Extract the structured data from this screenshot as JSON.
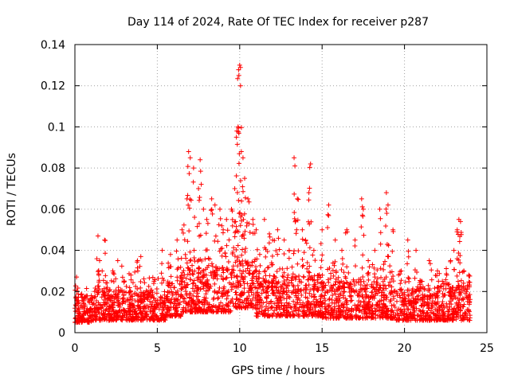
{
  "chart_data": {
    "type": "scatter",
    "title": "Day 114 of 2024, Rate Of TEC Index for receiver p287",
    "xlabel": "GPS time / hours",
    "ylabel": "ROTI / TECUs",
    "xlim": [
      0,
      25
    ],
    "ylim": [
      0,
      0.14
    ],
    "xticks": [
      0,
      5,
      10,
      15,
      20,
      25
    ],
    "xtick_labels": [
      "0",
      "5",
      "10",
      "15",
      "20",
      "25"
    ],
    "yticks": [
      0,
      0.02,
      0.04,
      0.06,
      0.08,
      0.1,
      0.12,
      0.14
    ],
    "ytick_labels": [
      "0",
      "0.02",
      "0.04",
      "0.06",
      "0.08",
      "0.1",
      "0.12",
      "0.14"
    ],
    "grid": true,
    "marker": "+",
    "color": "#ff0000",
    "series": [
      {
        "name": "ROTI",
        "points": [
          [
            0.1,
            0.027
          ],
          [
            0.2,
            0.012
          ],
          [
            0.5,
            0.015
          ],
          [
            0.8,
            0.01
          ],
          [
            1.0,
            0.018
          ],
          [
            1.2,
            0.02
          ],
          [
            1.4,
            0.047
          ],
          [
            1.5,
            0.035
          ],
          [
            1.8,
            0.045
          ],
          [
            2.0,
            0.02
          ],
          [
            2.3,
            0.03
          ],
          [
            2.6,
            0.035
          ],
          [
            3.0,
            0.025
          ],
          [
            3.4,
            0.028
          ],
          [
            3.8,
            0.035
          ],
          [
            4.0,
            0.037
          ],
          [
            4.4,
            0.02
          ],
          [
            4.8,
            0.025
          ],
          [
            5.3,
            0.04
          ],
          [
            5.8,
            0.038
          ],
          [
            6.2,
            0.045
          ],
          [
            6.5,
            0.05
          ],
          [
            6.8,
            0.065
          ],
          [
            6.9,
            0.088
          ],
          [
            7.0,
            0.085
          ],
          [
            7.2,
            0.08
          ],
          [
            7.5,
            0.07
          ],
          [
            7.6,
            0.084
          ],
          [
            7.8,
            0.06
          ],
          [
            8.0,
            0.055
          ],
          [
            8.3,
            0.065
          ],
          [
            8.5,
            0.062
          ],
          [
            8.8,
            0.06
          ],
          [
            9.0,
            0.05
          ],
          [
            9.2,
            0.055
          ],
          [
            9.5,
            0.06
          ],
          [
            9.7,
            0.07
          ],
          [
            9.8,
            0.095
          ],
          [
            9.9,
            0.1
          ],
          [
            9.95,
            0.125
          ],
          [
            10.0,
            0.13
          ],
          [
            10.05,
            0.12
          ],
          [
            10.1,
            0.088
          ],
          [
            10.2,
            0.085
          ],
          [
            10.3,
            0.075
          ],
          [
            10.5,
            0.065
          ],
          [
            10.8,
            0.055
          ],
          [
            11.0,
            0.05
          ],
          [
            11.5,
            0.055
          ],
          [
            11.8,
            0.048
          ],
          [
            12.0,
            0.045
          ],
          [
            12.3,
            0.05
          ],
          [
            12.7,
            0.045
          ],
          [
            13.0,
            0.04
          ],
          [
            13.3,
            0.085
          ],
          [
            13.35,
            0.081
          ],
          [
            13.5,
            0.065
          ],
          [
            13.8,
            0.05
          ],
          [
            14.0,
            0.045
          ],
          [
            14.2,
            0.068
          ],
          [
            14.3,
            0.082
          ],
          [
            14.5,
            0.04
          ],
          [
            15.0,
            0.05
          ],
          [
            15.4,
            0.062
          ],
          [
            15.8,
            0.045
          ],
          [
            16.2,
            0.04
          ],
          [
            16.5,
            0.05
          ],
          [
            17.0,
            0.045
          ],
          [
            17.4,
            0.065
          ],
          [
            17.5,
            0.06
          ],
          [
            17.8,
            0.035
          ],
          [
            18.2,
            0.04
          ],
          [
            18.5,
            0.06
          ],
          [
            18.9,
            0.068
          ],
          [
            19.0,
            0.062
          ],
          [
            19.3,
            0.05
          ],
          [
            19.8,
            0.03
          ],
          [
            20.2,
            0.045
          ],
          [
            20.7,
            0.04
          ],
          [
            21.0,
            0.025
          ],
          [
            21.5,
            0.035
          ],
          [
            22.0,
            0.03
          ],
          [
            22.3,
            0.025
          ],
          [
            22.8,
            0.035
          ],
          [
            23.0,
            0.04
          ],
          [
            23.2,
            0.05
          ],
          [
            23.3,
            0.055
          ],
          [
            23.4,
            0.054
          ],
          [
            23.6,
            0.03
          ],
          [
            23.9,
            0.028
          ]
        ],
        "bands": [
          {
            "x": [
              0,
              1
            ],
            "base": [
              0.005,
              0.02
            ],
            "spread": 0.01
          },
          {
            "x": [
              1,
              3
            ],
            "base": [
              0.006,
              0.022
            ],
            "spread": 0.012
          },
          {
            "x": [
              3,
              5.5
            ],
            "base": [
              0.006,
              0.02
            ],
            "spread": 0.012
          },
          {
            "x": [
              5.5,
              6.5
            ],
            "base": [
              0.008,
              0.025
            ],
            "spread": 0.015
          },
          {
            "x": [
              6.5,
              9.5
            ],
            "base": [
              0.01,
              0.032
            ],
            "spread": 0.025
          },
          {
            "x": [
              9.5,
              11
            ],
            "base": [
              0.012,
              0.035
            ],
            "spread": 0.03
          },
          {
            "x": [
              11,
              15
            ],
            "base": [
              0.008,
              0.028
            ],
            "spread": 0.018
          },
          {
            "x": [
              15,
              19.5
            ],
            "base": [
              0.007,
              0.025
            ],
            "spread": 0.016
          },
          {
            "x": [
              19.5,
              22.5
            ],
            "base": [
              0.006,
              0.022
            ],
            "spread": 0.013
          },
          {
            "x": [
              22.5,
              24
            ],
            "base": [
              0.006,
              0.024
            ],
            "spread": 0.014
          }
        ]
      }
    ]
  }
}
